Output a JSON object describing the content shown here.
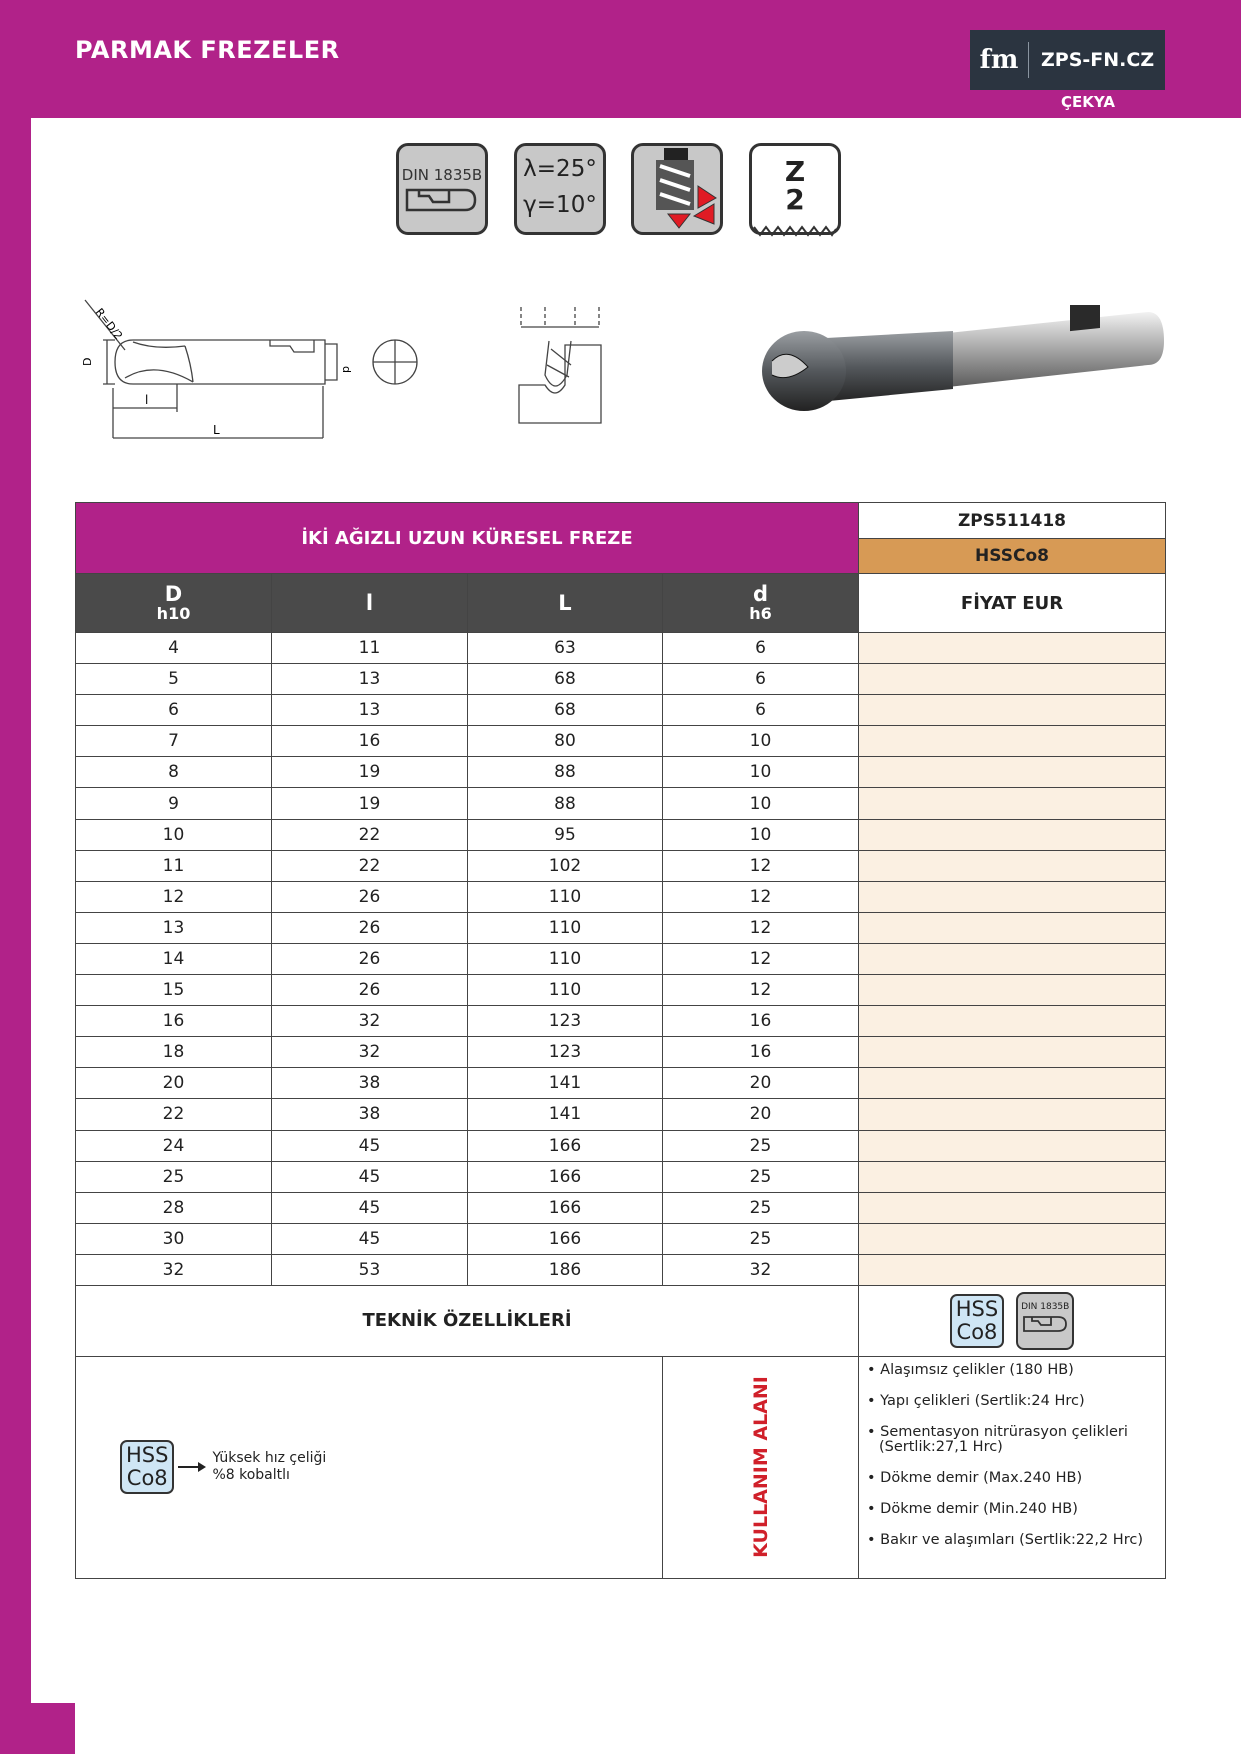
{
  "header": {
    "title": "PARMAK FREZELER",
    "logo_mark": "fm",
    "logo_text": "ZPS-FN.CZ",
    "country": "ÇEKYA"
  },
  "icons": {
    "din": "DIN 1835B",
    "lambda": "λ=25°",
    "gamma": "γ=10°",
    "z_label": "Z",
    "z_value": "2"
  },
  "drawing": {
    "radius": "R=D/2",
    "diameter": "D",
    "shank": "d",
    "cut_length": "l",
    "length": "L"
  },
  "table": {
    "title": "İKİ AĞIZLI UZUN KÜRESEL FREZE",
    "code": "ZPS511418",
    "material": "HSSCo8",
    "columns": [
      {
        "main": "D",
        "sub": "h10"
      },
      {
        "main": "l"
      },
      {
        "main": "L"
      },
      {
        "main": "d",
        "sub": "h6"
      }
    ],
    "price_header": "FİYAT EUR",
    "rows": [
      [
        4,
        11,
        63,
        6
      ],
      [
        5,
        13,
        68,
        6
      ],
      [
        6,
        13,
        68,
        6
      ],
      [
        7,
        16,
        80,
        10
      ],
      [
        8,
        19,
        88,
        10
      ],
      [
        9,
        19,
        88,
        10
      ],
      [
        10,
        22,
        95,
        10
      ],
      [
        11,
        22,
        102,
        12
      ],
      [
        12,
        26,
        110,
        12
      ],
      [
        13,
        26,
        110,
        12
      ],
      [
        14,
        26,
        110,
        12
      ],
      [
        15,
        26,
        110,
        12
      ],
      [
        16,
        32,
        123,
        16
      ],
      [
        18,
        32,
        123,
        16
      ],
      [
        20,
        38,
        141,
        20
      ],
      [
        22,
        38,
        141,
        20
      ],
      [
        24,
        45,
        166,
        25
      ],
      [
        25,
        45,
        166,
        25
      ],
      [
        28,
        45,
        166,
        25
      ],
      [
        30,
        45,
        166,
        25
      ],
      [
        32,
        53,
        186,
        32
      ]
    ]
  },
  "tech": {
    "title": "TEKNİK ÖZELLİKLERİ",
    "badge": [
      "HSS",
      "Co8"
    ],
    "din": "DIN 1835B",
    "note": [
      "Yüksek hız çeliği",
      "%8 kobaltlı"
    ],
    "usage_title": "KULLANIM ALANI",
    "usage": [
      "Alaşımsız çelikler (180 HB)",
      "Yapı çelikleri (Sertlik:24 Hrc)",
      "Sementasyon nitrürasyon çelikleri (Sertlik:27,1 Hrc)",
      "Dökme demir (Max.240 HB)",
      "Dökme demir (Min.240 HB)",
      "Bakır ve alaşımları (Sertlik:22,2 Hrc)"
    ]
  }
}
